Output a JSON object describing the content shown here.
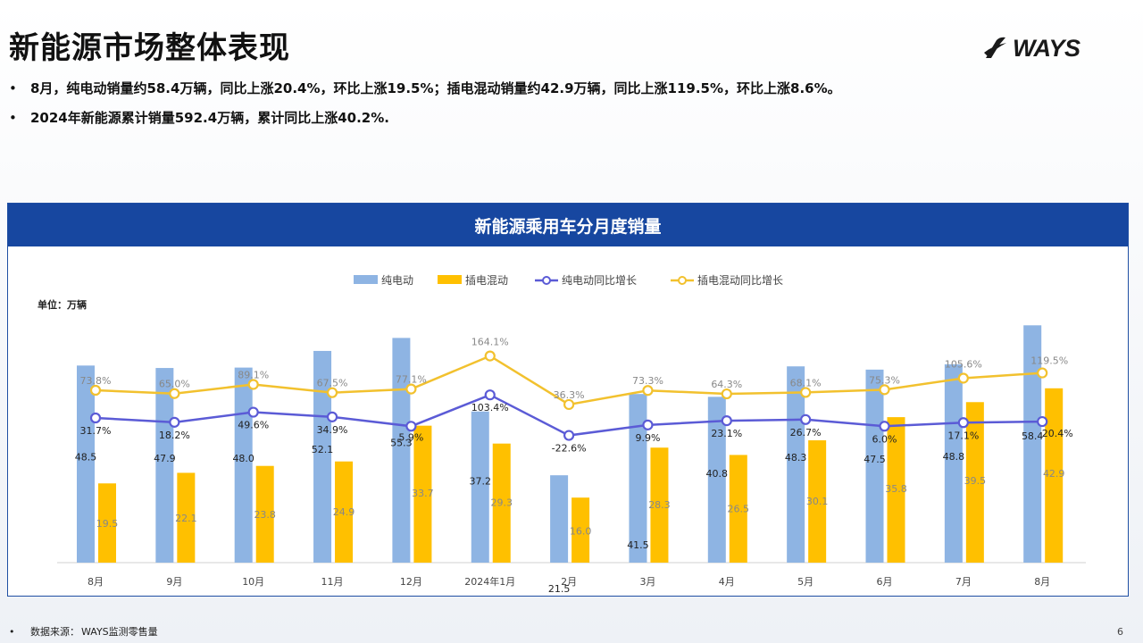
{
  "header": {
    "title": "新能源市场整体表现",
    "logo_text": "WAYS"
  },
  "bullets": [
    "8月，纯电动销量约58.4万辆，同比上涨20.4%，环比上涨19.5%；插电混动销量约42.9万辆，同比上涨119.5%，环比上涨8.6%。",
    "2024年新能源累计销量592.4万辆，累计同比上涨40.2%."
  ],
  "panel": {
    "title": "新能源乘用车分月度销量"
  },
  "footer": {
    "source_label": "数据来源：",
    "source_value": "WAYS监测零售量",
    "page_number": "6"
  },
  "colors": {
    "bev_bar": "#8eb4e3",
    "phev_bar": "#ffc000",
    "bev_line": "#5b5bd6",
    "phev_line": "#f2c12e",
    "header_blue": "#1747a0"
  },
  "chart_data": {
    "type": "bar",
    "unit_label": "单位：万辆",
    "categories": [
      "8月",
      "9月",
      "10月",
      "11月",
      "12月",
      "2024年1月",
      "2月",
      "3月",
      "4月",
      "5月",
      "6月",
      "7月",
      "8月"
    ],
    "series": [
      {
        "name": "纯电动",
        "type": "bar",
        "values": [
          48.5,
          47.9,
          48.0,
          52.1,
          55.3,
          37.2,
          21.5,
          41.5,
          40.8,
          48.3,
          47.5,
          48.8,
          58.4
        ]
      },
      {
        "name": "插电混动",
        "type": "bar",
        "values": [
          19.5,
          22.1,
          23.8,
          24.9,
          33.7,
          29.3,
          16.0,
          28.3,
          26.5,
          30.1,
          35.8,
          39.5,
          42.9
        ]
      },
      {
        "name": "纯电动同比增长",
        "type": "line",
        "values": [
          31.7,
          18.2,
          49.6,
          34.9,
          5.9,
          103.4,
          -22.6,
          9.9,
          23.1,
          26.7,
          6.0,
          17.1,
          20.4
        ]
      },
      {
        "name": "插电混动同比增长",
        "type": "line",
        "values": [
          73.8,
          65.0,
          89.1,
          67.5,
          77.1,
          164.1,
          36.3,
          73.3,
          64.3,
          68.1,
          75.3,
          105.6,
          119.5
        ]
      }
    ],
    "legend_position": "top",
    "grid": false
  }
}
